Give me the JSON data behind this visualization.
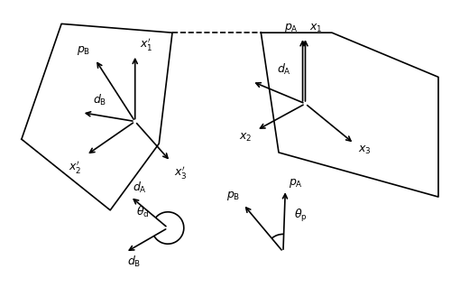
{
  "bg_color": "#ffffff",
  "arrow_color": "#000000",
  "line_color": "#000000",
  "figsize": [
    5.0,
    3.29
  ],
  "dpi": 100
}
